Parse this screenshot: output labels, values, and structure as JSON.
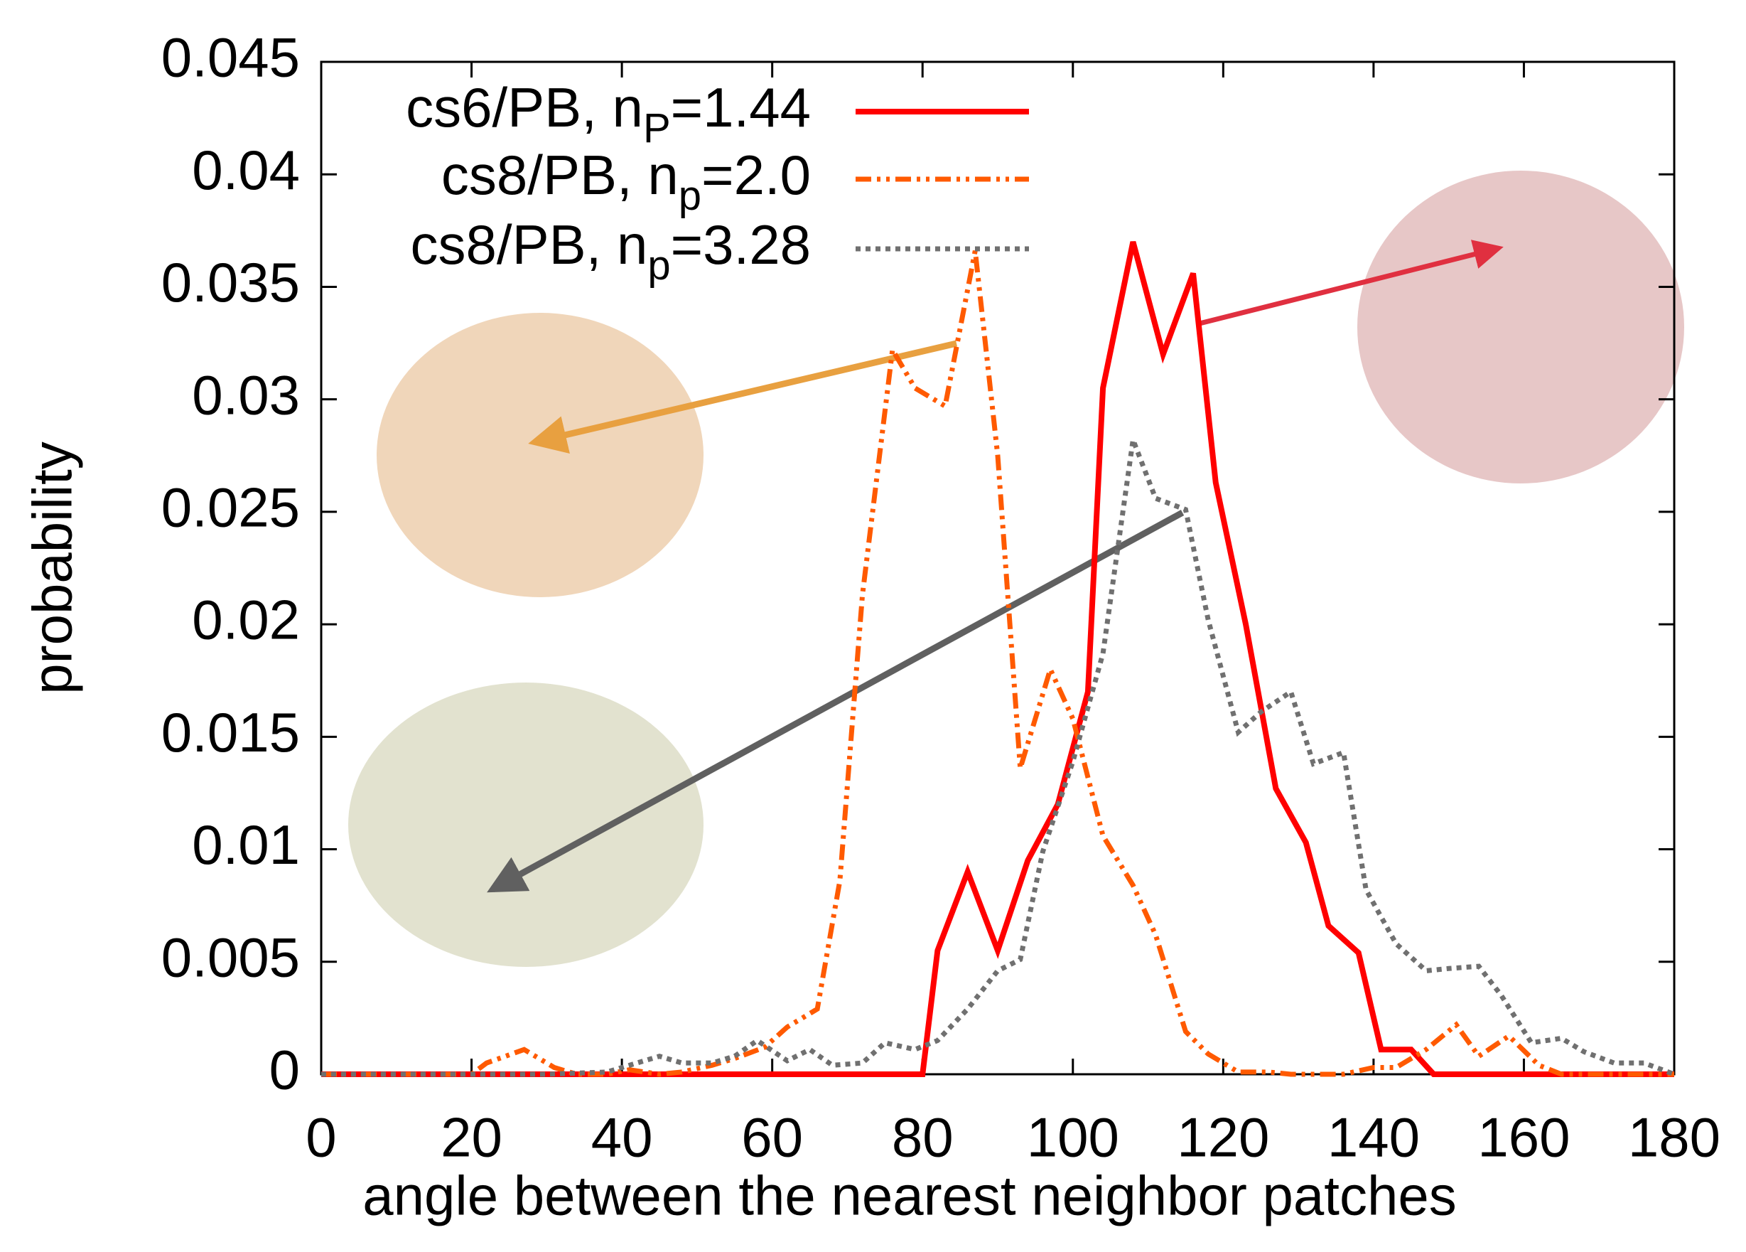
{
  "chart_data": {
    "type": "line",
    "x_label": "angle between the nearest neighbor patches",
    "y_label": "probability",
    "xlim": [
      0,
      180
    ],
    "ylim": [
      0,
      0.045
    ],
    "xticks": [
      0,
      20,
      40,
      60,
      80,
      100,
      120,
      140,
      160,
      180
    ],
    "yticks": [
      0,
      0.005,
      0.01,
      0.015,
      0.02,
      0.025,
      0.03,
      0.035,
      0.04,
      0.045
    ],
    "legend": "upper left",
    "series": [
      {
        "name": "cs6/PB, nP=1.44",
        "color": "#ff0000",
        "dash": "solid",
        "x": [
          0,
          80,
          82,
          86,
          90,
          94,
          98,
          102,
          104,
          108,
          112,
          116,
          119,
          123,
          127,
          131,
          134,
          138,
          141,
          145,
          148,
          180
        ],
        "values": [
          0,
          0,
          0.0055,
          0.009,
          0.0055,
          0.0095,
          0.012,
          0.017,
          0.0305,
          0.037,
          0.032,
          0.0356,
          0.0263,
          0.02,
          0.0127,
          0.0103,
          0.0066,
          0.0054,
          0.0011,
          0.0011,
          0,
          0
        ]
      },
      {
        "name": "cs8/PB, np=2.0",
        "color": "#ff5a00",
        "dash": "dashdotdot",
        "x": [
          0,
          20,
          22,
          27,
          31,
          34,
          38,
          41,
          45,
          48,
          52,
          55,
          59,
          62,
          66,
          69,
          72,
          76,
          79,
          83,
          87,
          90,
          93,
          97,
          100,
          104,
          108,
          111,
          115,
          118,
          122,
          126,
          129,
          133,
          136,
          140,
          143,
          147,
          151,
          154,
          158,
          162,
          165,
          180
        ],
        "values": [
          0,
          0,
          0.0005,
          0.0011,
          0.0003,
          0,
          0,
          0.0002,
          0,
          0.0001,
          0.0004,
          0.0007,
          0.0012,
          0.0021,
          0.0029,
          0.0086,
          0.0213,
          0.0322,
          0.0305,
          0.0297,
          0.0366,
          0.0275,
          0.0136,
          0.018,
          0.0158,
          0.0106,
          0.0084,
          0.0062,
          0.0019,
          0.0009,
          0.0001,
          0.0001,
          0,
          0,
          0,
          0.0003,
          0.0003,
          0.0011,
          0.0022,
          0.0008,
          0.0017,
          0.0004,
          0,
          0
        ]
      },
      {
        "name": "cs8/PB, np=3.28",
        "color": "#707070",
        "dash": "dotted",
        "x": [
          0,
          30,
          38,
          45,
          48,
          52,
          55,
          58,
          62,
          65,
          68,
          72,
          75,
          79,
          82,
          86,
          90,
          93,
          96,
          100,
          104,
          108,
          111,
          115,
          118,
          122,
          125,
          129,
          132,
          136,
          139,
          143,
          147,
          150,
          154,
          157,
          161,
          165,
          168,
          172,
          176,
          180
        ],
        "values": [
          0,
          0,
          0.0001,
          0.0008,
          0.0005,
          0.0005,
          0.0008,
          0.0015,
          0.0006,
          0.0011,
          0.0004,
          0.0005,
          0.0014,
          0.0011,
          0.0015,
          0.0029,
          0.0046,
          0.0051,
          0.0099,
          0.0139,
          0.0187,
          0.0282,
          0.0256,
          0.0251,
          0.0202,
          0.0152,
          0.0161,
          0.017,
          0.0138,
          0.0143,
          0.0082,
          0.0058,
          0.0046,
          0.0047,
          0.0048,
          0.0035,
          0.0014,
          0.0016,
          0.001,
          0.0005,
          0.0005,
          0
        ]
      }
    ]
  }
}
